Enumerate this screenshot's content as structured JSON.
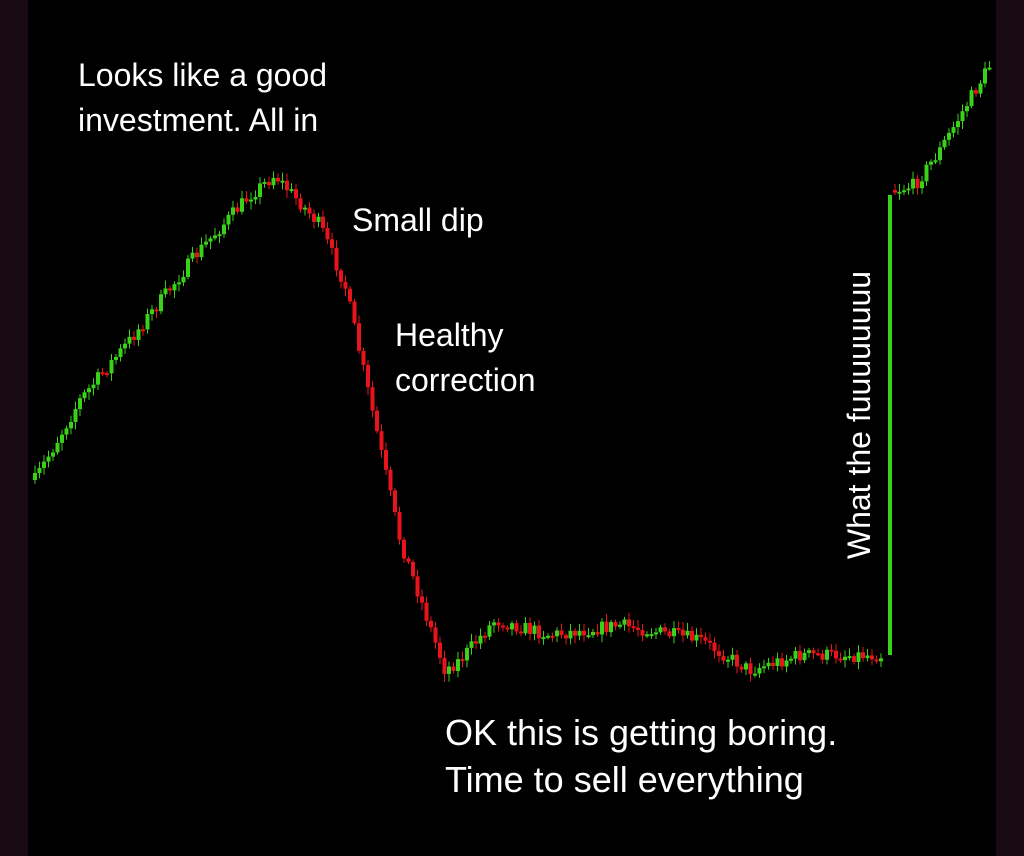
{
  "annotations": [
    {
      "lines": [
        "Looks like a good",
        "investment. All in"
      ]
    },
    {
      "lines": [
        "Small dip"
      ]
    },
    {
      "lines": [
        "Healthy",
        "correction"
      ]
    },
    {
      "lines": [
        "OK this is getting boring.",
        "Time to sell everything"
      ]
    },
    {
      "lines": [
        "What the fuuuuuuuu"
      ]
    }
  ]
}
